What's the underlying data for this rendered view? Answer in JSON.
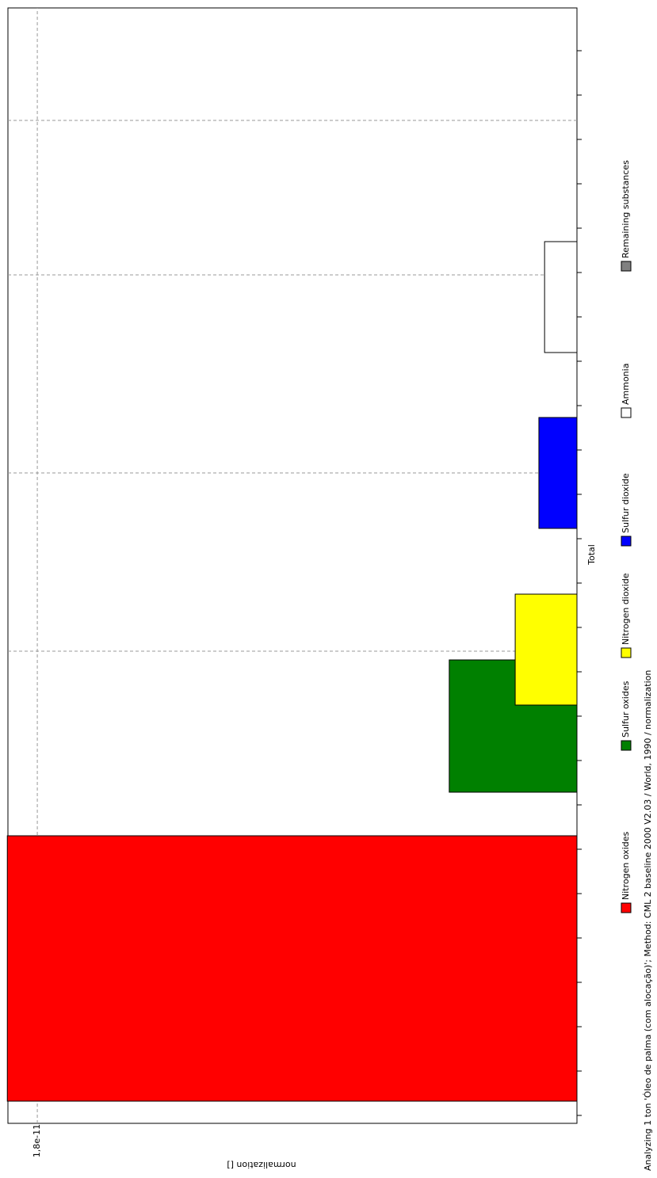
{
  "chart_data": {
    "type": "bar",
    "categories": [
      "Total"
    ],
    "x_label": "",
    "y_label": "normalization []",
    "series": [
      {
        "name": "Nitrogen oxides",
        "color": "#ff0000",
        "values": [
          1.9e-11
        ]
      },
      {
        "name": "Sulfur oxides",
        "color": "#008000",
        "values": [
          4.26e-12
        ]
      },
      {
        "name": "Nitrogen dioxide",
        "color": "#ffff00",
        "values": [
          2.06e-12
        ]
      },
      {
        "name": "Sulfur dioxide",
        "color": "#0000ff",
        "values": [
          1.27e-12
        ]
      },
      {
        "name": "Ammonia",
        "color": "#ffffff",
        "values": [
          1.08e-12
        ]
      },
      {
        "name": "Remaining substances",
        "color": "#808080",
        "values": [
          0
        ]
      }
    ],
    "ylim": [
      0,
      1.898e-11
    ],
    "yticks": [
      {
        "value": 1.8e-11,
        "label": "1,8e-11"
      }
    ],
    "grid": true,
    "footer": "Analyzing 1 ton 'Óleo de palma (com alocação)'; Method: CML 2 baseline 2000 V2.03 / World, 1990 / normalization"
  }
}
